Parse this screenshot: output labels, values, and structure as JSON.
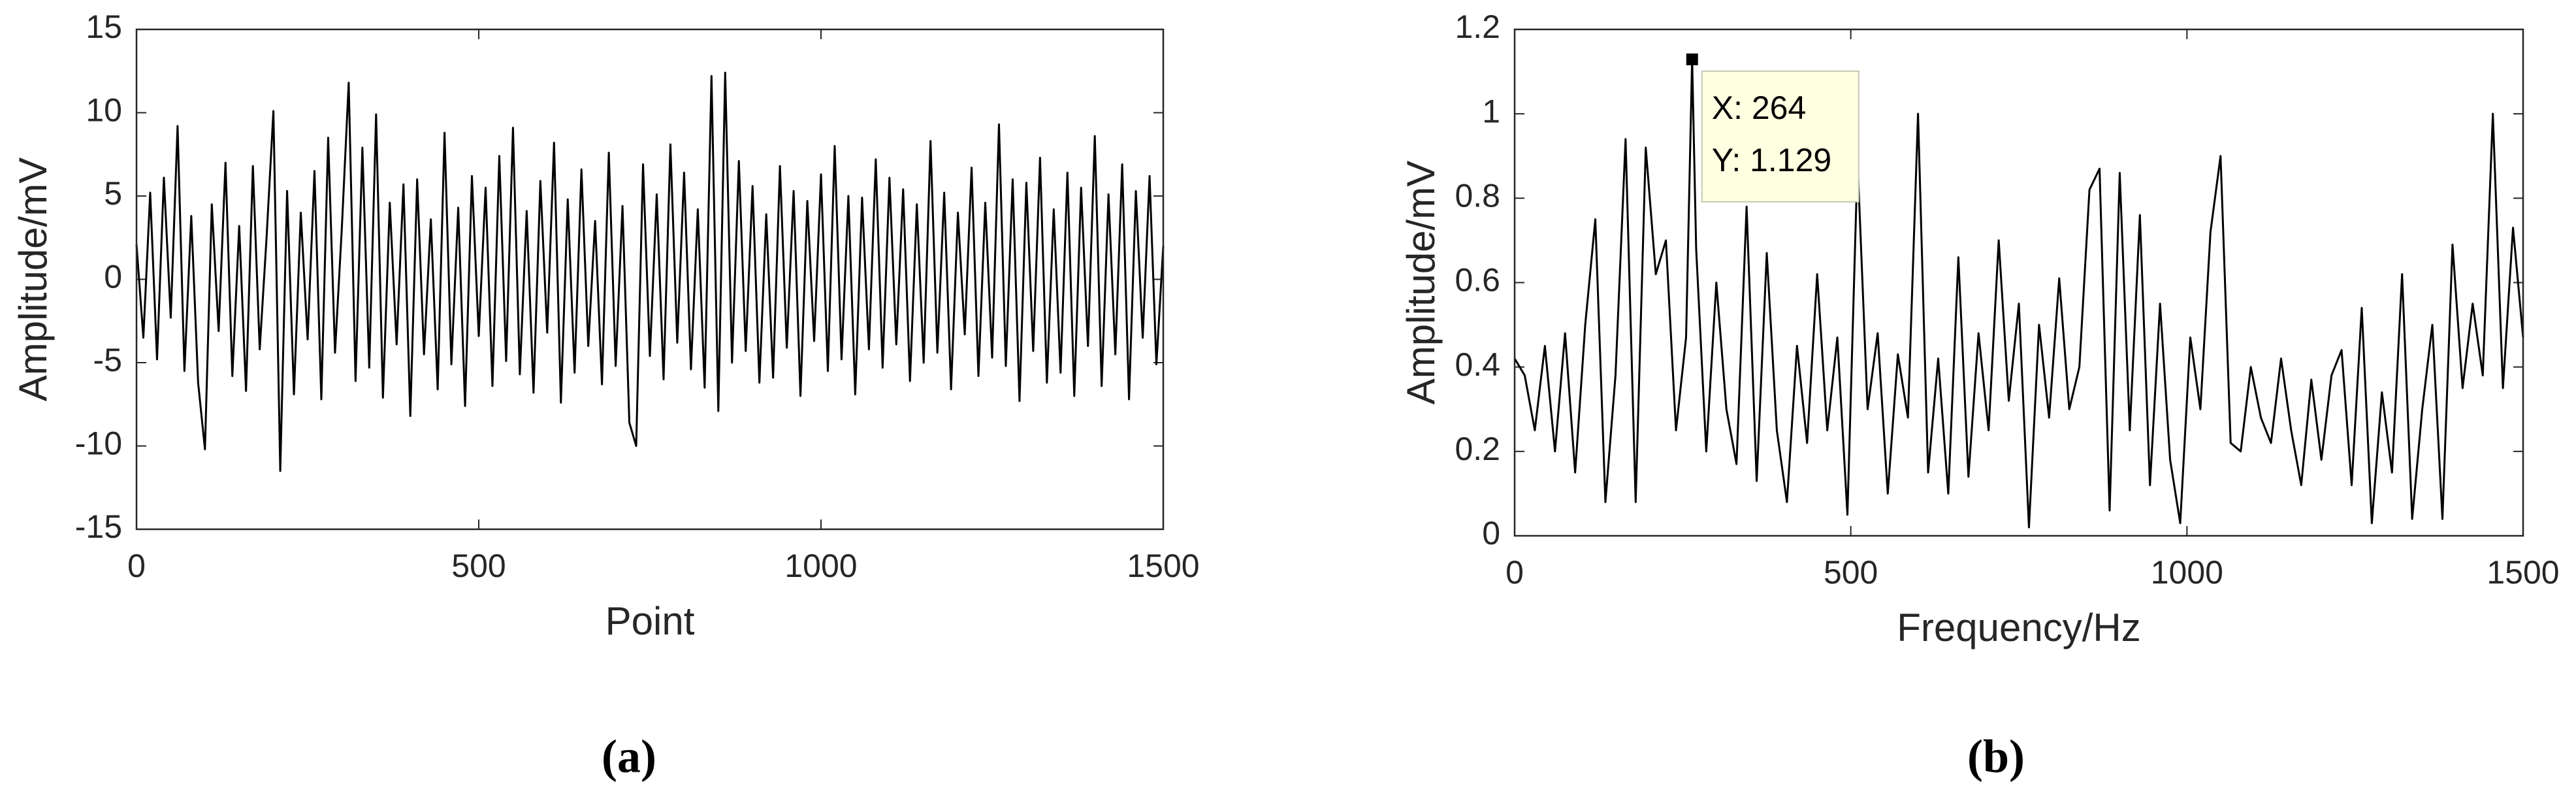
{
  "chart_data": [
    {
      "type": "line",
      "caption": "(a)",
      "xlabel": "Point",
      "ylabel": "Amplitude/mV",
      "color": "#000000",
      "xlim": [
        0,
        1500
      ],
      "ylim": [
        -15,
        15
      ],
      "xticks": [
        0,
        500,
        1000,
        1500
      ],
      "yticks": [
        -15,
        -10,
        -5,
        0,
        5,
        10,
        15
      ],
      "x": [
        0,
        10,
        20,
        30,
        40,
        50,
        60,
        70,
        80,
        90,
        100,
        110,
        120,
        130,
        140,
        150,
        160,
        170,
        180,
        190,
        200,
        210,
        220,
        230,
        240,
        250,
        260,
        270,
        280,
        290,
        300,
        310,
        320,
        330,
        340,
        350,
        360,
        370,
        380,
        390,
        400,
        410,
        420,
        430,
        440,
        450,
        460,
        470,
        480,
        490,
        500,
        510,
        520,
        530,
        540,
        550,
        560,
        570,
        580,
        590,
        600,
        610,
        620,
        630,
        640,
        650,
        660,
        670,
        680,
        690,
        700,
        710,
        720,
        730,
        740,
        750,
        760,
        770,
        780,
        790,
        800,
        810,
        820,
        830,
        840,
        850,
        860,
        870,
        880,
        890,
        900,
        910,
        920,
        930,
        940,
        950,
        960,
        970,
        980,
        990,
        1000,
        1010,
        1020,
        1030,
        1040,
        1050,
        1060,
        1070,
        1080,
        1090,
        1100,
        1110,
        1120,
        1130,
        1140,
        1150,
        1160,
        1170,
        1180,
        1190,
        1200,
        1210,
        1220,
        1230,
        1240,
        1250,
        1260,
        1270,
        1280,
        1290,
        1300,
        1310,
        1320,
        1330,
        1340,
        1350,
        1360,
        1370,
        1380,
        1390,
        1400,
        1410,
        1420,
        1430,
        1440,
        1450,
        1460,
        1470,
        1480,
        1490,
        1500
      ],
      "values": [
        2.1,
        -3.5,
        5.2,
        -4.8,
        6.1,
        -2.3,
        9.2,
        -5.5,
        3.8,
        -6.2,
        -10.2,
        4.5,
        -3.1,
        7.0,
        -5.8,
        3.2,
        -6.7,
        6.8,
        -4.2,
        2.5,
        10.1,
        -11.5,
        5.3,
        -6.9,
        4.0,
        -3.6,
        6.5,
        -7.2,
        8.5,
        -4.4,
        3.1,
        11.8,
        -6.1,
        7.9,
        -5.3,
        9.9,
        -7.1,
        4.6,
        -3.9,
        5.7,
        -8.2,
        6.0,
        -4.5,
        3.6,
        -6.6,
        8.8,
        -5.1,
        4.3,
        -7.6,
        6.2,
        -3.4,
        5.5,
        -6.4,
        7.4,
        -4.9,
        9.1,
        -5.7,
        4.1,
        -6.8,
        5.9,
        -3.2,
        8.2,
        -7.4,
        4.8,
        -5.6,
        6.6,
        -4.0,
        3.5,
        -6.3,
        7.6,
        -5.2,
        4.4,
        -8.6,
        -10.0,
        6.9,
        -4.6,
        5.1,
        -6.0,
        8.1,
        -3.8,
        6.4,
        -5.4,
        4.2,
        -6.5,
        12.2,
        -7.9,
        12.4,
        -5.0,
        7.1,
        -4.3,
        5.6,
        -6.2,
        3.9,
        -5.9,
        6.8,
        -4.1,
        5.3,
        -7.0,
        4.7,
        -3.7,
        6.3,
        -5.5,
        8.0,
        -4.8,
        5.0,
        -6.9,
        4.9,
        -4.2,
        7.2,
        -5.3,
        6.1,
        -3.9,
        5.4,
        -6.1,
        4.5,
        -5.0,
        8.3,
        -4.4,
        5.2,
        -6.6,
        4.0,
        -3.3,
        6.7,
        -5.8,
        4.6,
        -4.7,
        9.3,
        -5.2,
        6.0,
        -7.3,
        5.8,
        -4.3,
        7.3,
        -6.2,
        4.2,
        -5.6,
        6.4,
        -7.0,
        5.5,
        -4.0,
        8.6,
        -6.4,
        5.1,
        -4.5,
        6.9,
        -7.2,
        5.3,
        -3.5,
        6.2,
        -5.1,
        2.0
      ]
    },
    {
      "type": "line",
      "caption": "(b)",
      "xlabel": "Frequency/Hz",
      "ylabel": "Amplitude/mV",
      "color": "#000000",
      "xlim": [
        0,
        1500
      ],
      "ylim": [
        0,
        1.2
      ],
      "xticks": [
        0,
        500,
        1000,
        1500
      ],
      "yticks": [
        0,
        0.2,
        0.4,
        0.6,
        0.8,
        1,
        1.2
      ],
      "x": [
        0,
        15,
        30,
        45,
        60,
        75,
        90,
        105,
        120,
        135,
        150,
        165,
        180,
        195,
        210,
        225,
        240,
        255,
        264,
        270,
        285,
        300,
        315,
        330,
        345,
        360,
        375,
        390,
        405,
        420,
        435,
        450,
        465,
        480,
        495,
        510,
        525,
        540,
        555,
        570,
        585,
        600,
        615,
        630,
        645,
        660,
        675,
        690,
        705,
        720,
        735,
        750,
        765,
        780,
        795,
        810,
        825,
        840,
        855,
        870,
        885,
        900,
        915,
        930,
        945,
        960,
        975,
        990,
        1005,
        1020,
        1035,
        1050,
        1065,
        1080,
        1095,
        1110,
        1125,
        1140,
        1155,
        1170,
        1185,
        1200,
        1215,
        1230,
        1245,
        1260,
        1275,
        1290,
        1305,
        1320,
        1335,
        1350,
        1365,
        1380,
        1395,
        1410,
        1425,
        1440,
        1455,
        1470,
        1485,
        1500
      ],
      "values": [
        0.42,
        0.38,
        0.25,
        0.45,
        0.2,
        0.48,
        0.15,
        0.5,
        0.75,
        0.08,
        0.38,
        0.94,
        0.08,
        0.92,
        0.62,
        0.7,
        0.25,
        0.47,
        1.129,
        0.68,
        0.2,
        0.6,
        0.3,
        0.17,
        0.78,
        0.13,
        0.67,
        0.25,
        0.08,
        0.45,
        0.22,
        0.62,
        0.25,
        0.47,
        0.05,
        0.89,
        0.3,
        0.48,
        0.1,
        0.43,
        0.28,
        1.0,
        0.15,
        0.42,
        0.1,
        0.66,
        0.14,
        0.48,
        0.25,
        0.7,
        0.32,
        0.55,
        0.02,
        0.5,
        0.28,
        0.61,
        0.3,
        0.4,
        0.82,
        0.87,
        0.06,
        0.86,
        0.25,
        0.76,
        0.12,
        0.55,
        0.18,
        0.03,
        0.47,
        0.3,
        0.72,
        0.9,
        0.22,
        0.2,
        0.4,
        0.28,
        0.22,
        0.42,
        0.25,
        0.12,
        0.37,
        0.18,
        0.38,
        0.44,
        0.12,
        0.54,
        0.03,
        0.34,
        0.15,
        0.62,
        0.04,
        0.3,
        0.5,
        0.04,
        0.69,
        0.35,
        0.55,
        0.38,
        1.0,
        0.35,
        0.73,
        0.47
      ],
      "annotations": [
        {
          "x": 264,
          "y": 1.129,
          "text": [
            "X: 264",
            "Y: 1.129"
          ]
        }
      ]
    }
  ]
}
